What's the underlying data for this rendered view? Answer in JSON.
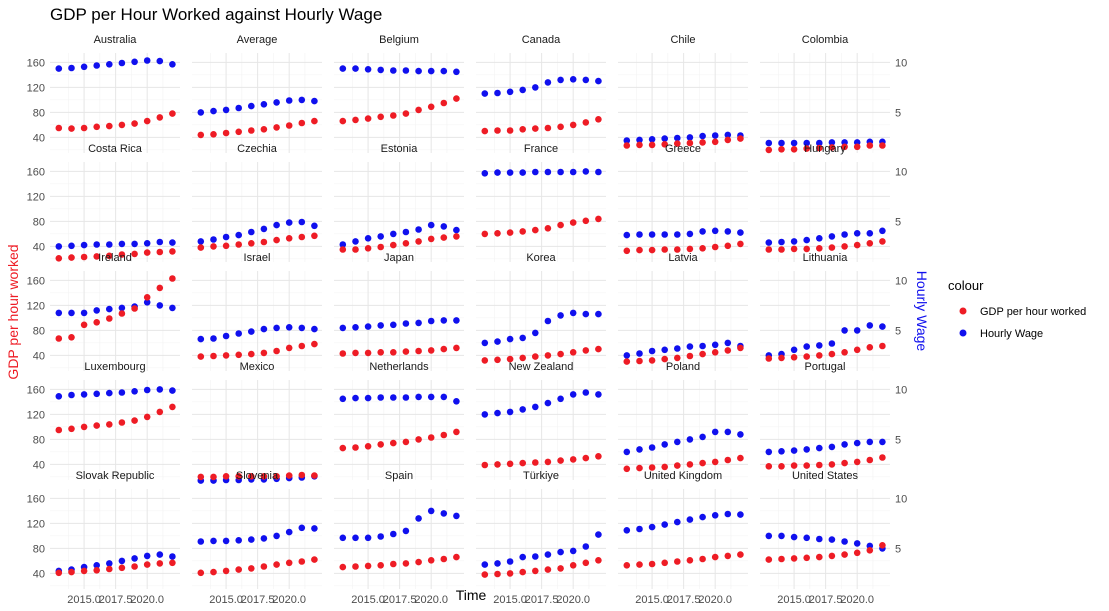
{
  "chart_data": {
    "type": "scatter",
    "title": "GDP per Hour Worked against Hourly Wage",
    "xlabel": "Time",
    "ylabel_left": "GDP per hour worked",
    "ylabel_right": "Hourly Wage",
    "ylabel_left_color": "#ee1c25",
    "ylabel_right_color": "#1010ee",
    "x_range": [
      2012.3,
      2022.6
    ],
    "x_ticks": [
      2015.0,
      2017.5,
      2020.0
    ],
    "x_tick_labels": [
      "2015.0",
      "2017.5",
      "2020.0"
    ],
    "y_left_range": [
      15,
      175
    ],
    "y_left_ticks": [
      40,
      80,
      120,
      160
    ],
    "y_right_ticks": [
      5,
      10
    ],
    "y_right_note": "secondary axis: Hourly Wage = GDP per hour worked / 16",
    "grid": true,
    "facet_columns": 6,
    "legend": {
      "title": "colour",
      "position": "right",
      "entries": [
        {
          "name": "GDP per hour worked",
          "color": "#ee1c25"
        },
        {
          "name": "Hourly Wage",
          "color": "#1010ee"
        }
      ]
    },
    "years": [
      2013,
      2014,
      2015,
      2016,
      2017,
      2018,
      2019,
      2020,
      2021,
      2022
    ],
    "panels": [
      {
        "name": "Australia",
        "gdp": [
          55,
          54,
          55,
          57,
          58,
          60,
          62,
          66,
          72,
          78
        ],
        "wage": [
          150,
          151,
          153,
          155,
          157,
          159,
          161,
          163,
          162,
          157
        ]
      },
      {
        "name": "Average",
        "gdp": [
          44,
          45,
          47,
          49,
          51,
          53,
          56,
          59,
          63,
          66
        ],
        "wage": [
          80,
          82,
          84,
          87,
          90,
          93,
          96,
          99,
          100,
          98
        ]
      },
      {
        "name": "Belgium",
        "gdp": [
          66,
          68,
          70,
          73,
          75,
          78,
          84,
          89,
          95,
          102
        ],
        "wage": [
          150,
          150,
          149,
          148,
          147,
          147,
          146,
          146,
          146,
          145
        ]
      },
      {
        "name": "Canada",
        "gdp": [
          50,
          51,
          51,
          53,
          54,
          55,
          57,
          60,
          64,
          69
        ],
        "wage": [
          110,
          111,
          113,
          116,
          120,
          128,
          132,
          133,
          132,
          130
        ]
      },
      {
        "name": "Chile",
        "gdp": [
          27,
          28,
          28,
          29,
          30,
          31,
          32,
          33,
          36,
          38
        ],
        "wage": [
          35,
          36,
          37,
          38,
          39,
          40,
          42,
          43,
          44,
          43
        ]
      },
      {
        "name": "Colombia",
        "gdp": [
          20,
          21,
          21,
          22,
          23,
          24,
          25,
          25,
          27,
          27
        ],
        "wage": [
          31,
          31,
          31,
          31,
          31,
          32,
          32,
          32,
          33,
          33
        ]
      },
      {
        "name": "Costa Rica",
        "gdp": [
          21,
          22,
          23,
          24,
          25,
          27,
          28,
          30,
          31,
          32
        ],
        "wage": [
          40,
          41,
          42,
          43,
          43,
          44,
          44,
          45,
          47,
          46
        ]
      },
      {
        "name": "Czechia",
        "gdp": [
          38,
          40,
          41,
          43,
          45,
          47,
          50,
          53,
          55,
          57
        ],
        "wage": [
          48,
          51,
          55,
          58,
          63,
          68,
          74,
          78,
          79,
          73
        ]
      },
      {
        "name": "Estonia",
        "gdp": [
          35,
          35,
          37,
          39,
          42,
          45,
          48,
          52,
          54,
          56
        ],
        "wage": [
          43,
          48,
          53,
          56,
          60,
          63,
          67,
          74,
          72,
          66
        ]
      },
      {
        "name": "France",
        "gdp": [
          60,
          61,
          62,
          64,
          66,
          69,
          74,
          78,
          81,
          84
        ],
        "wage": [
          157,
          158,
          158,
          158,
          159,
          159,
          159,
          159,
          160,
          159
        ]
      },
      {
        "name": "Greece",
        "gdp": [
          33,
          34,
          34,
          35,
          35,
          36,
          37,
          39,
          41,
          44
        ],
        "wage": [
          58,
          59,
          59,
          59,
          59,
          60,
          64,
          65,
          64,
          62
        ]
      },
      {
        "name": "Hungary",
        "gdp": [
          35,
          35,
          36,
          36,
          37,
          38,
          40,
          42,
          45,
          48
        ],
        "wage": [
          46,
          47,
          48,
          50,
          53,
          56,
          59,
          61,
          61,
          65
        ]
      },
      {
        "name": "Ireland",
        "gdp": [
          67,
          69,
          89,
          93,
          99,
          107,
          115,
          133,
          148,
          163
        ],
        "wage": [
          108,
          108,
          108,
          112,
          114,
          116,
          118,
          125,
          120,
          116
        ]
      },
      {
        "name": "Israel",
        "gdp": [
          38,
          39,
          40,
          41,
          42,
          44,
          47,
          52,
          55,
          58
        ],
        "wage": [
          66,
          67,
          71,
          75,
          78,
          82,
          84,
          85,
          84,
          82
        ]
      },
      {
        "name": "Japan",
        "gdp": [
          43,
          44,
          44,
          45,
          45,
          46,
          47,
          48,
          50,
          52
        ],
        "wage": [
          84,
          85,
          86,
          88,
          89,
          91,
          92,
          95,
          96,
          96
        ]
      },
      {
        "name": "Korea",
        "gdp": [
          32,
          33,
          34,
          36,
          38,
          40,
          42,
          45,
          48,
          50
        ],
        "wage": [
          60,
          62,
          66,
          68,
          76,
          95,
          104,
          108,
          106,
          106
        ]
      },
      {
        "name": "Latvia",
        "gdp": [
          30,
          31,
          32,
          34,
          36,
          39,
          42,
          45,
          48,
          52
        ],
        "wage": [
          40,
          43,
          47,
          49,
          51,
          54,
          55,
          57,
          60,
          55
        ]
      },
      {
        "name": "Lithuania",
        "gdp": [
          35,
          36,
          37,
          38,
          40,
          42,
          45,
          49,
          53,
          55
        ],
        "wage": [
          40,
          42,
          49,
          54,
          56,
          59,
          80,
          80,
          88,
          86
        ]
      },
      {
        "name": "Luxembourg",
        "gdp": [
          95,
          97,
          100,
          102,
          104,
          107,
          110,
          116,
          124,
          132
        ],
        "wage": [
          149,
          151,
          152,
          153,
          154,
          155,
          157,
          159,
          160,
          158
        ]
      },
      {
        "name": "Mexico",
        "gdp": [
          20,
          20,
          21,
          21,
          21,
          21,
          21,
          22,
          23,
          22
        ],
        "wage": [
          14,
          14,
          15,
          15,
          16,
          16,
          17,
          18,
          19,
          21
        ]
      },
      {
        "name": "Netherlands",
        "gdp": [
          66,
          67,
          69,
          72,
          74,
          76,
          80,
          83,
          87,
          92
        ],
        "wage": [
          145,
          146,
          146,
          147,
          147,
          147,
          148,
          148,
          148,
          141
        ]
      },
      {
        "name": "New Zealand",
        "gdp": [
          39,
          40,
          41,
          42,
          43,
          44,
          46,
          48,
          50,
          53
        ],
        "wage": [
          120,
          122,
          124,
          128,
          132,
          138,
          145,
          152,
          155,
          152
        ]
      },
      {
        "name": "Poland",
        "gdp": [
          33,
          34,
          35,
          36,
          38,
          40,
          42,
          44,
          47,
          50
        ],
        "wage": [
          60,
          64,
          67,
          72,
          76,
          80,
          84,
          92,
          92,
          88
        ]
      },
      {
        "name": "Portugal",
        "gdp": [
          37,
          37,
          38,
          38,
          39,
          40,
          42,
          44,
          47,
          51
        ],
        "wage": [
          60,
          61,
          62,
          64,
          66,
          68,
          72,
          74,
          76,
          76
        ]
      },
      {
        "name": "Slovak Republic",
        "gdp": [
          41,
          42,
          44,
          45,
          47,
          49,
          51,
          54,
          56,
          57
        ],
        "wage": [
          44,
          46,
          50,
          53,
          56,
          60,
          64,
          68,
          70,
          67
        ]
      },
      {
        "name": "Slovenia",
        "gdp": [
          41,
          42,
          44,
          46,
          48,
          51,
          54,
          57,
          59,
          62
        ],
        "wage": [
          91,
          92,
          92,
          93,
          94,
          96,
          100,
          106,
          113,
          112
        ]
      },
      {
        "name": "Spain",
        "gdp": [
          50,
          51,
          52,
          53,
          55,
          56,
          58,
          61,
          63,
          66
        ],
        "wage": [
          97,
          97,
          97,
          99,
          103,
          108,
          128,
          140,
          136,
          132
        ]
      },
      {
        "name": "Türkiye",
        "gdp": [
          38,
          39,
          40,
          42,
          44,
          46,
          48,
          53,
          57,
          61
        ],
        "wage": [
          54,
          56,
          59,
          66,
          67,
          70,
          74,
          76,
          83,
          102
        ]
      },
      {
        "name": "United Kingdom",
        "gdp": [
          53,
          54,
          55,
          57,
          59,
          61,
          63,
          66,
          68,
          70
        ],
        "wage": [
          109,
          111,
          114,
          118,
          122,
          126,
          130,
          133,
          135,
          134
        ]
      },
      {
        "name": "United States",
        "gdp": [
          62,
          63,
          64,
          65,
          66,
          68,
          70,
          73,
          77,
          85
        ],
        "wage": [
          100,
          100,
          98,
          97,
          95,
          94,
          91,
          88,
          84,
          80
        ]
      }
    ]
  }
}
